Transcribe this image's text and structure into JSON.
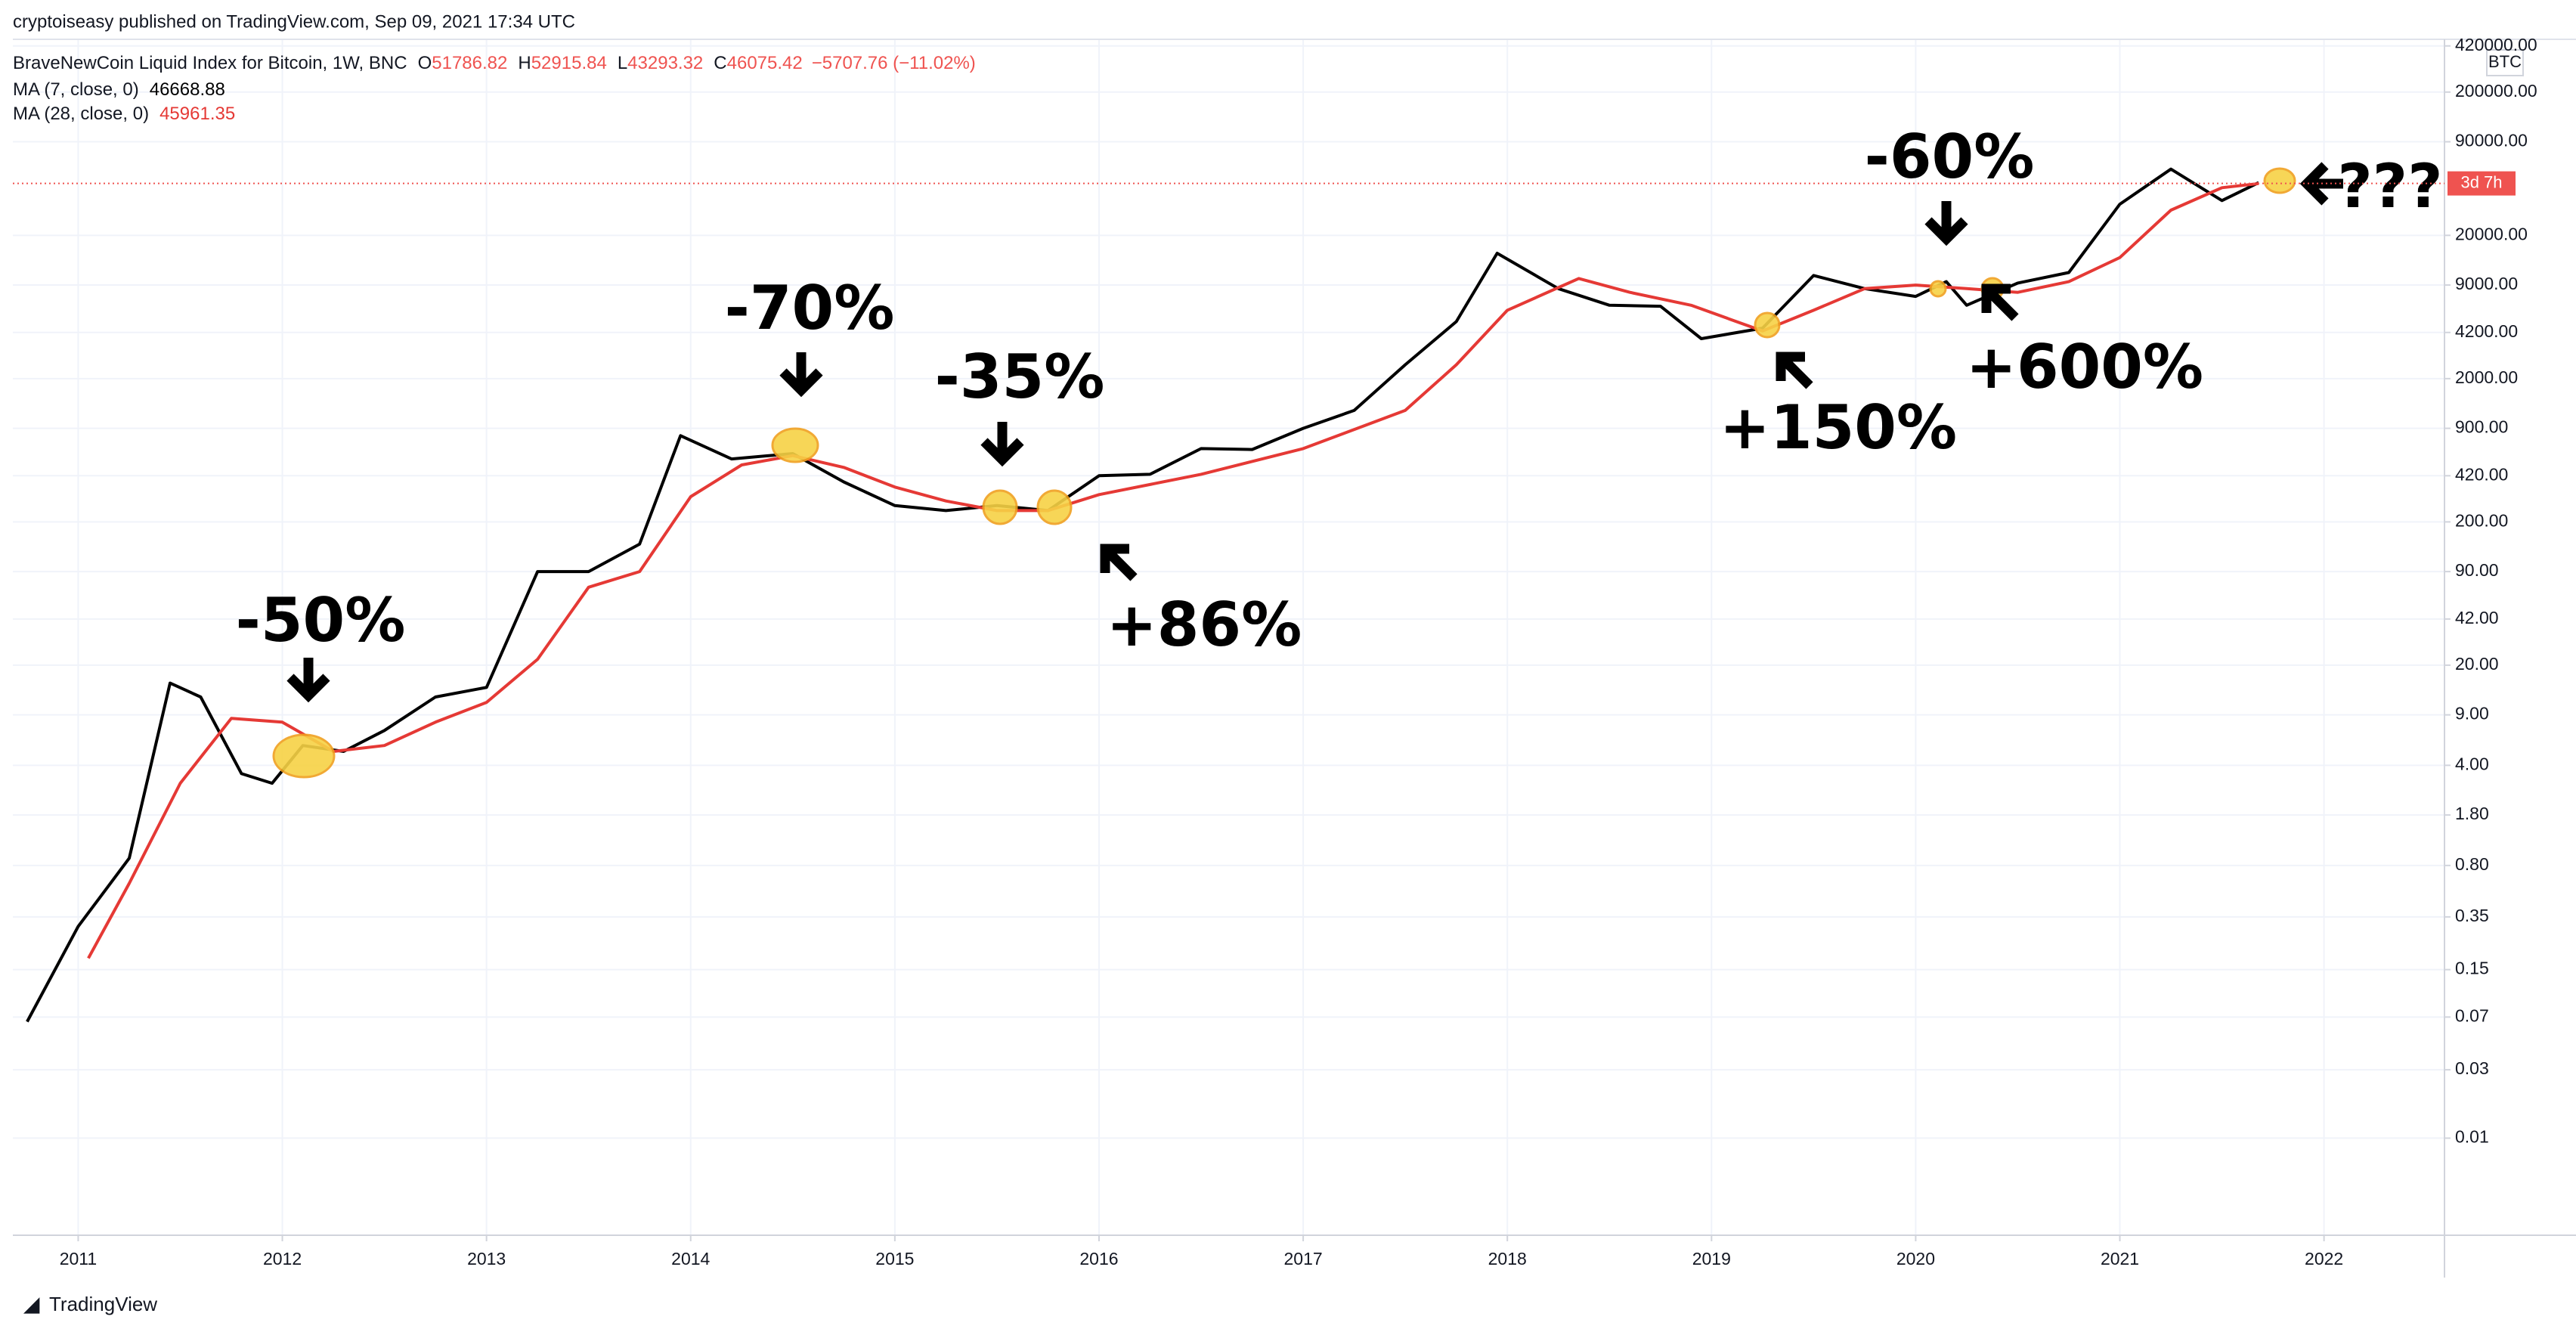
{
  "chart_data": {
    "type": "line",
    "publisher": "cryptoiseasy published on TradingView.com, Sep 09, 2021 17:34 UTC",
    "title": "BraveNewCoin Liquid Index for Bitcoin, 1W, BNC",
    "ohlc": [
      {
        "label": "O",
        "value": 51786.82
      },
      {
        "label": "H",
        "value": 52915.84
      },
      {
        "label": "L",
        "value": 43293.32
      },
      {
        "label": "C",
        "value": 46075.42
      }
    ],
    "change": "−5707.76 (−11.02%)",
    "currency": "BTC",
    "countdown": "3d 7h",
    "last_price": 46075.42,
    "branding": "TradingView",
    "log_scale": true,
    "grid": true,
    "xlim": [
      2010.68,
      2022.59
    ],
    "xticks": [
      2011,
      2012,
      2013,
      2014,
      2015,
      2016,
      2017,
      2018,
      2019,
      2020,
      2021,
      2022
    ],
    "ylim": [
      0.0021,
      467000
    ],
    "yticks": [
      {
        "value": 420000,
        "label": "420000.00"
      },
      {
        "value": 200000,
        "label": "200000.00"
      },
      {
        "value": 90000,
        "label": "90000.00"
      },
      {
        "value": 20000,
        "label": "20000.00"
      },
      {
        "value": 9000,
        "label": "9000.00"
      },
      {
        "value": 4200,
        "label": "4200.00"
      },
      {
        "value": 2000,
        "label": "2000.00"
      },
      {
        "value": 900,
        "label": "900.00"
      },
      {
        "value": 420,
        "label": "420.00"
      },
      {
        "value": 200,
        "label": "200.00"
      },
      {
        "value": 90,
        "label": "90.00"
      },
      {
        "value": 42,
        "label": "42.00"
      },
      {
        "value": 20,
        "label": "20.00"
      },
      {
        "value": 9,
        "label": "9.00"
      },
      {
        "value": 4,
        "label": "4.00"
      },
      {
        "value": 1.8,
        "label": "1.80"
      },
      {
        "value": 0.8,
        "label": "0.80"
      },
      {
        "value": 0.35,
        "label": "0.35"
      },
      {
        "value": 0.15,
        "label": "0.15"
      },
      {
        "value": 0.07,
        "label": "0.07"
      },
      {
        "value": 0.03,
        "label": "0.03"
      },
      {
        "value": 0.01,
        "label": "0.01"
      }
    ],
    "series": [
      {
        "name": "MA (7, close, 0)",
        "color": "#000000",
        "x": [
          2010.75,
          2011.0,
          2011.25,
          2011.45,
          2011.6,
          2011.8,
          2011.95,
          2012.1,
          2012.3,
          2012.5,
          2012.75,
          2013.0,
          2013.25,
          2013.5,
          2013.75,
          2013.95,
          2014.2,
          2014.5,
          2014.75,
          2015.0,
          2015.25,
          2015.5,
          2015.75,
          2016.0,
          2016.25,
          2016.5,
          2016.75,
          2017.0,
          2017.25,
          2017.5,
          2017.75,
          2017.95,
          2018.25,
          2018.5,
          2018.75,
          2018.95,
          2019.25,
          2019.5,
          2019.75,
          2020.0,
          2020.15,
          2020.25,
          2020.5,
          2020.75,
          2021.0,
          2021.25,
          2021.5,
          2021.68
        ],
        "values": [
          0.065,
          0.3,
          0.9,
          15,
          12,
          3.5,
          3,
          5.5,
          5,
          7,
          12,
          14,
          90,
          90,
          140,
          800,
          550,
          600,
          380,
          260,
          240,
          260,
          240,
          420,
          430,
          650,
          640,
          900,
          1200,
          2500,
          5000,
          15000,
          8500,
          6500,
          6400,
          3800,
          4500,
          10500,
          8500,
          7500,
          9500,
          6500,
          9300,
          11000,
          33000,
          58000,
          35000,
          46668.88
        ]
      },
      {
        "name": "MA (28, close, 0)",
        "color": "#e53935",
        "x": [
          2011.05,
          2011.25,
          2011.5,
          2011.75,
          2012.0,
          2012.25,
          2012.5,
          2012.75,
          2013.0,
          2013.25,
          2013.5,
          2013.75,
          2014.0,
          2014.25,
          2014.5,
          2014.75,
          2015.0,
          2015.25,
          2015.5,
          2015.75,
          2016.0,
          2016.5,
          2017.0,
          2017.5,
          2017.75,
          2018.0,
          2018.35,
          2018.6,
          2018.9,
          2019.25,
          2019.5,
          2019.75,
          2020.0,
          2020.25,
          2020.5,
          2020.75,
          2021.0,
          2021.25,
          2021.5,
          2021.68
        ],
        "values": [
          0.18,
          0.6,
          3,
          8.5,
          8,
          5,
          5.5,
          8,
          11,
          22,
          70,
          90,
          300,
          500,
          580,
          480,
          350,
          280,
          240,
          240,
          310,
          430,
          650,
          1200,
          2500,
          6000,
          10000,
          8000,
          6500,
          4300,
          6000,
          8500,
          9000,
          8500,
          8000,
          9500,
          14000,
          30000,
          43000,
          45961.35
        ]
      }
    ],
    "annotations": [
      "-50%",
      "-70%",
      "-35%",
      "+86%",
      "-60%",
      "+150%",
      "+600%",
      "???"
    ]
  }
}
